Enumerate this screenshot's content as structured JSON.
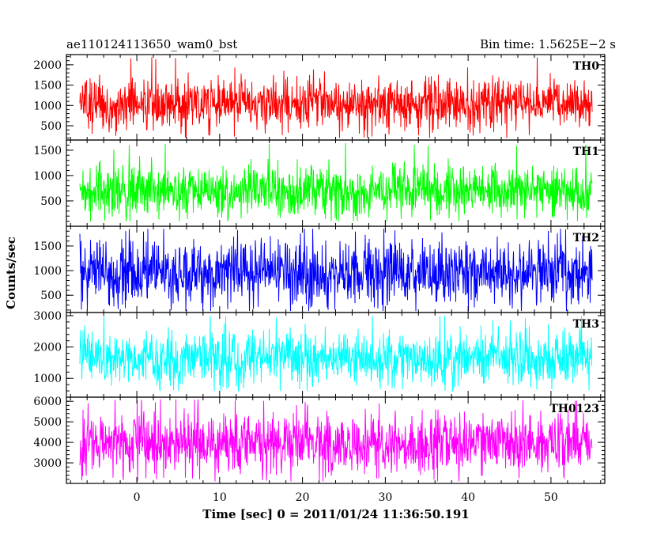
{
  "header": {
    "title": "ae110124113650_wam0_bst",
    "bin_time": "Bin time: 1.5625E−2 s"
  },
  "chart_data": {
    "type": "line",
    "ylabel": "Counts/sec",
    "xlabel": "Time [sec] 0 = 2011/01/24 11:36:50.191",
    "xlim": [
      -8.5,
      56.5
    ],
    "xticks": [
      0,
      10,
      20,
      30,
      40,
      50
    ],
    "bin_time_s": 0.015625,
    "panels": [
      {
        "name": "TH0",
        "color": "#ff0000",
        "ylim": [
          150,
          2250
        ],
        "yticks": [
          500,
          1000,
          1500,
          2000
        ],
        "mean": 1050,
        "spread": 300,
        "min": 200,
        "max": 2200
      },
      {
        "name": "TH1",
        "color": "#00ff00",
        "ylim": [
          0,
          1700
        ],
        "yticks": [
          500,
          1000,
          1500
        ],
        "mean": 700,
        "spread": 250,
        "min": 100,
        "max": 1650
      },
      {
        "name": "TH2",
        "color": "#0000ff",
        "ylim": [
          150,
          1900
        ],
        "yticks": [
          500,
          1000,
          1500
        ],
        "mean": 960,
        "spread": 330,
        "min": 180,
        "max": 1850
      },
      {
        "name": "TH3",
        "color": "#00ffff",
        "ylim": [
          400,
          3100
        ],
        "yticks": [
          1000,
          2000,
          3000
        ],
        "mean": 1650,
        "spread": 430,
        "min": 600,
        "max": 3000
      },
      {
        "name": "TH0123",
        "color": "#ff00ff",
        "ylim": [
          2000,
          6200
        ],
        "yticks": [
          3000,
          4000,
          5000,
          6000
        ],
        "mean": 3950,
        "spread": 730,
        "min": 2100,
        "max": 6100
      }
    ]
  }
}
